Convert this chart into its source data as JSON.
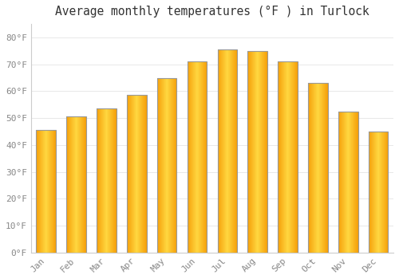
{
  "title": "Average monthly temperatures (°F ) in Turlock",
  "months": [
    "Jan",
    "Feb",
    "Mar",
    "Apr",
    "May",
    "Jun",
    "Jul",
    "Aug",
    "Sep",
    "Oct",
    "Nov",
    "Dec"
  ],
  "values": [
    45.5,
    50.5,
    53.5,
    58.5,
    65.0,
    71.0,
    75.5,
    75.0,
    71.0,
    63.0,
    52.5,
    45.0
  ],
  "bar_color_center": "#FFD740",
  "bar_color_edge": "#F5A623",
  "bar_border_color": "#999999",
  "ylim": [
    0,
    85
  ],
  "yticks": [
    0,
    10,
    20,
    30,
    40,
    50,
    60,
    70,
    80
  ],
  "ytick_labels": [
    "0°F",
    "10°F",
    "20°F",
    "30°F",
    "40°F",
    "50°F",
    "60°F",
    "70°F",
    "80°F"
  ],
  "background_color": "#ffffff",
  "grid_color": "#e8e8e8",
  "title_fontsize": 10.5,
  "tick_fontsize": 8,
  "bar_width": 0.65,
  "figsize": [
    5.0,
    3.5
  ],
  "dpi": 100
}
